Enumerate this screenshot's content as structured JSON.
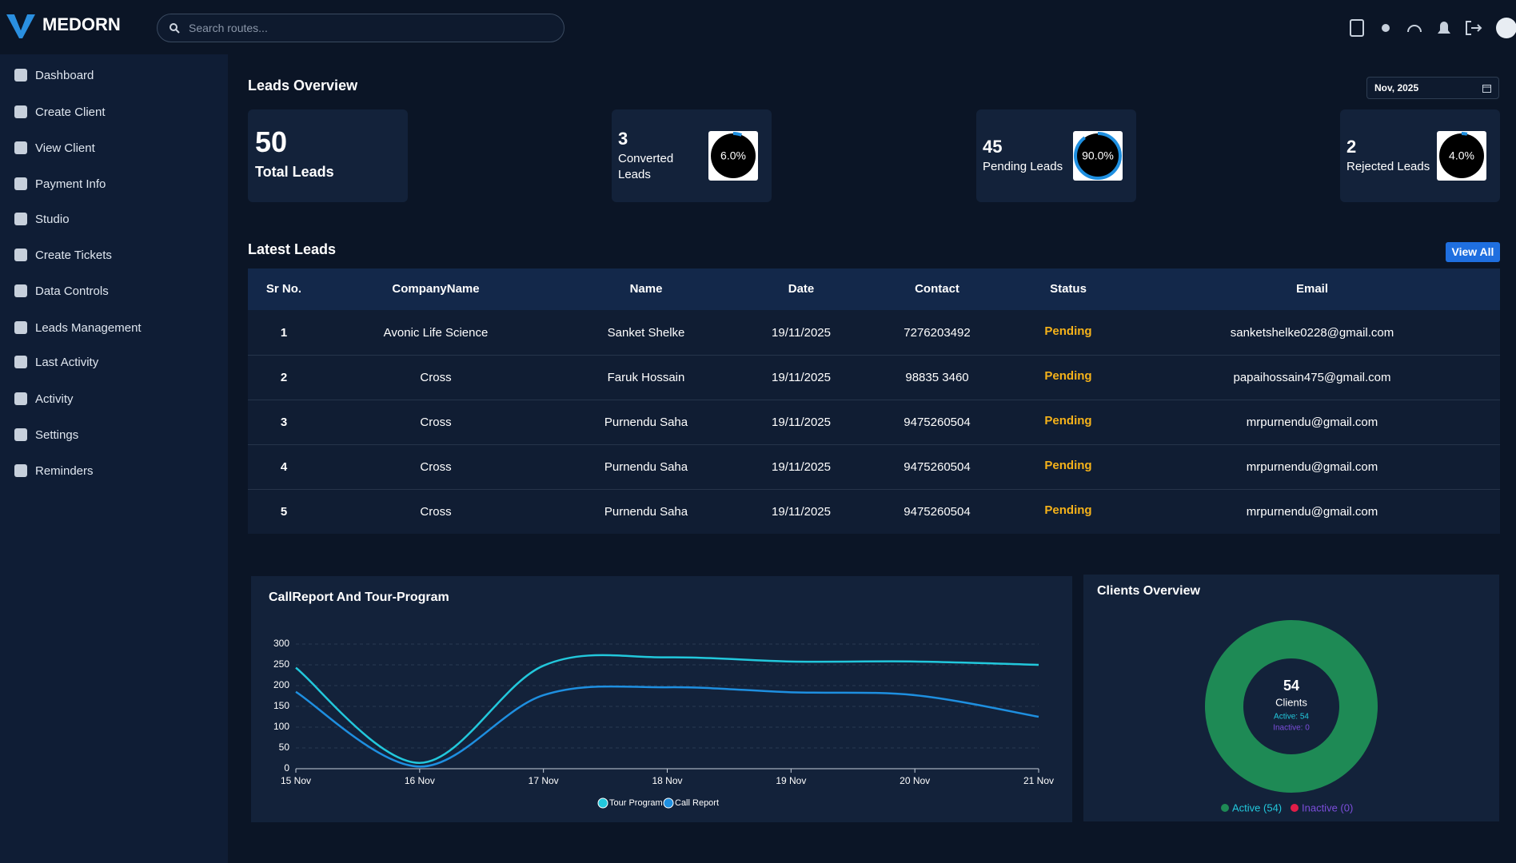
{
  "brand": "MEDORN",
  "search_placeholder": "Search routes...",
  "nav": [
    "Dashboard",
    "Create Client",
    "View Client",
    "Payment Info",
    "Studio",
    "Create Tickets",
    "Data Controls",
    "Leads Management",
    "Last Activity",
    "Activity",
    "Settings",
    "Reminders"
  ],
  "overview": {
    "title": "Leads Overview",
    "month": "Nov, 2025",
    "cards": [
      {
        "value": 50,
        "label": "Total Leads"
      },
      {
        "value": 3,
        "label": "Converted Leads",
        "percent": 6,
        "percent_label": "6.0%"
      },
      {
        "value": 45,
        "label": "Pending Leads",
        "percent": 90,
        "percent_label": "90.0%"
      },
      {
        "value": 2,
        "label": "Rejected Leads",
        "percent": 4,
        "percent_label": "4.0%"
      }
    ]
  },
  "latest": {
    "title": "Latest Leads",
    "button": "View All",
    "columns": [
      "Sr No.",
      "CompanyName",
      "Name",
      "Date",
      "Contact",
      "Status",
      "Email"
    ],
    "rows": [
      [
        1,
        "Avonic Life Science",
        "Sanket Shelke",
        "19/11/2025",
        "7276203492",
        "Pending",
        "sanketshelke0228@gmail.com"
      ],
      [
        2,
        "Cross",
        "Faruk Hossain",
        "19/11/2025",
        "98835 3460",
        "Pending",
        "papaihossain475@gmail.com"
      ],
      [
        3,
        "Cross",
        "Purnendu Saha",
        "19/11/2025",
        "9475260504",
        "Pending",
        "mrpurnendu@gmail.com"
      ],
      [
        4,
        "Cross",
        "Purnendu Saha",
        "19/11/2025",
        "9475260504",
        "Pending",
        "mrpurnendu@gmail.com"
      ],
      [
        5,
        "Cross",
        "Purnendu Saha",
        "19/11/2025",
        "9475260504",
        "Pending",
        "mrpurnendu@gmail.com"
      ]
    ]
  },
  "call_report": {
    "type": "line",
    "title": "CallReport And Tour-Program",
    "categories": [
      "15 Nov",
      "16 Nov",
      "17 Nov",
      "18 Nov",
      "19 Nov",
      "20 Nov",
      "21 Nov"
    ],
    "series": [
      {
        "name": "Tour Program",
        "color": "#22c8dc",
        "values": [
          243,
          14,
          248,
          268,
          258,
          258,
          250
        ]
      },
      {
        "name": "Call Report",
        "color": "#1e8fe0",
        "values": [
          185,
          5,
          177,
          196,
          184,
          177,
          125
        ]
      }
    ],
    "ylim": [
      0,
      300
    ],
    "yticks": [
      0,
      50,
      100,
      150,
      200,
      250,
      300
    ],
    "grid": true
  },
  "clients": {
    "type": "pie",
    "title": "Clients Overview",
    "total": 54,
    "total_label": "Clients",
    "center_lines": [
      "Active: 54",
      "Inactive: 0"
    ],
    "series": [
      {
        "name": "Active",
        "legend": "Active (54)",
        "value": 54,
        "color": "#1e8a55",
        "text_color": "#22c8dc"
      },
      {
        "name": "Inactive",
        "legend": "Inactive (0)",
        "value": 0,
        "color": "#e11d48",
        "text_color": "#7c4ddb"
      }
    ]
  }
}
